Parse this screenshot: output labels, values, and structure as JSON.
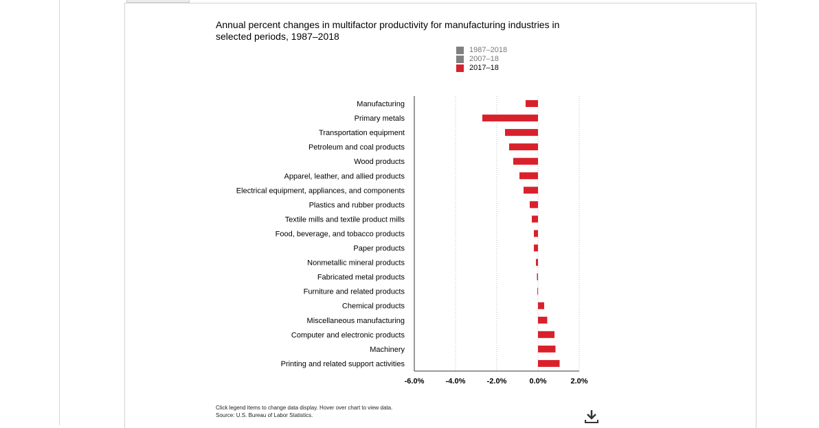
{
  "chart_data": {
    "type": "bar",
    "orientation": "horizontal",
    "title": "Annual percent changes in multifactor productivity for manufacturing industries in selected periods, 1987–2018",
    "legend": [
      {
        "name": "1987–2018",
        "color": "#808080",
        "active": false
      },
      {
        "name": "2007–18",
        "color": "#808080",
        "active": false
      },
      {
        "name": "2017–18",
        "color": "#d9212c",
        "active": true
      }
    ],
    "categories": [
      "Manufacturing",
      "Primary metals",
      "Transportation equipment",
      "Petroleum and coal products",
      "Wood products",
      "Apparel, leather, and allied products",
      "Electrical equipment, appliances, and components",
      "Plastics and rubber products",
      "Textile mills and textile product mills",
      "Food, beverage, and tobacco products",
      "Paper products",
      "Nonmetallic mineral products",
      "Fabricated metal products",
      "Furniture and related products",
      "Chemical products",
      "Miscellaneous manufacturing",
      "Computer and electronic products",
      "Machinery",
      "Printing and related support activities"
    ],
    "series": [
      {
        "name": "2017–18",
        "color": "#d9212c",
        "values": [
          -0.6,
          -2.7,
          -1.6,
          -1.4,
          -1.2,
          -0.9,
          -0.7,
          -0.4,
          -0.3,
          -0.2,
          -0.2,
          -0.1,
          -0.05,
          -0.03,
          0.3,
          0.45,
          0.8,
          0.85,
          1.05
        ]
      }
    ],
    "xlim": [
      -6.0,
      2.0
    ],
    "x_ticks": [
      "-6.0%",
      "-4.0%",
      "-2.0%",
      "0.0%",
      "2.0%"
    ],
    "x_tick_values": [
      -6,
      -4,
      -2,
      0,
      2
    ],
    "grid": "vertical dotted"
  },
  "footnote": {
    "line1": "Click legend items to change data display. Hover over chart to view data.",
    "line2": "Source: U.S. Bureau of Labor Statistics."
  },
  "icons": {
    "download": "download-icon"
  }
}
